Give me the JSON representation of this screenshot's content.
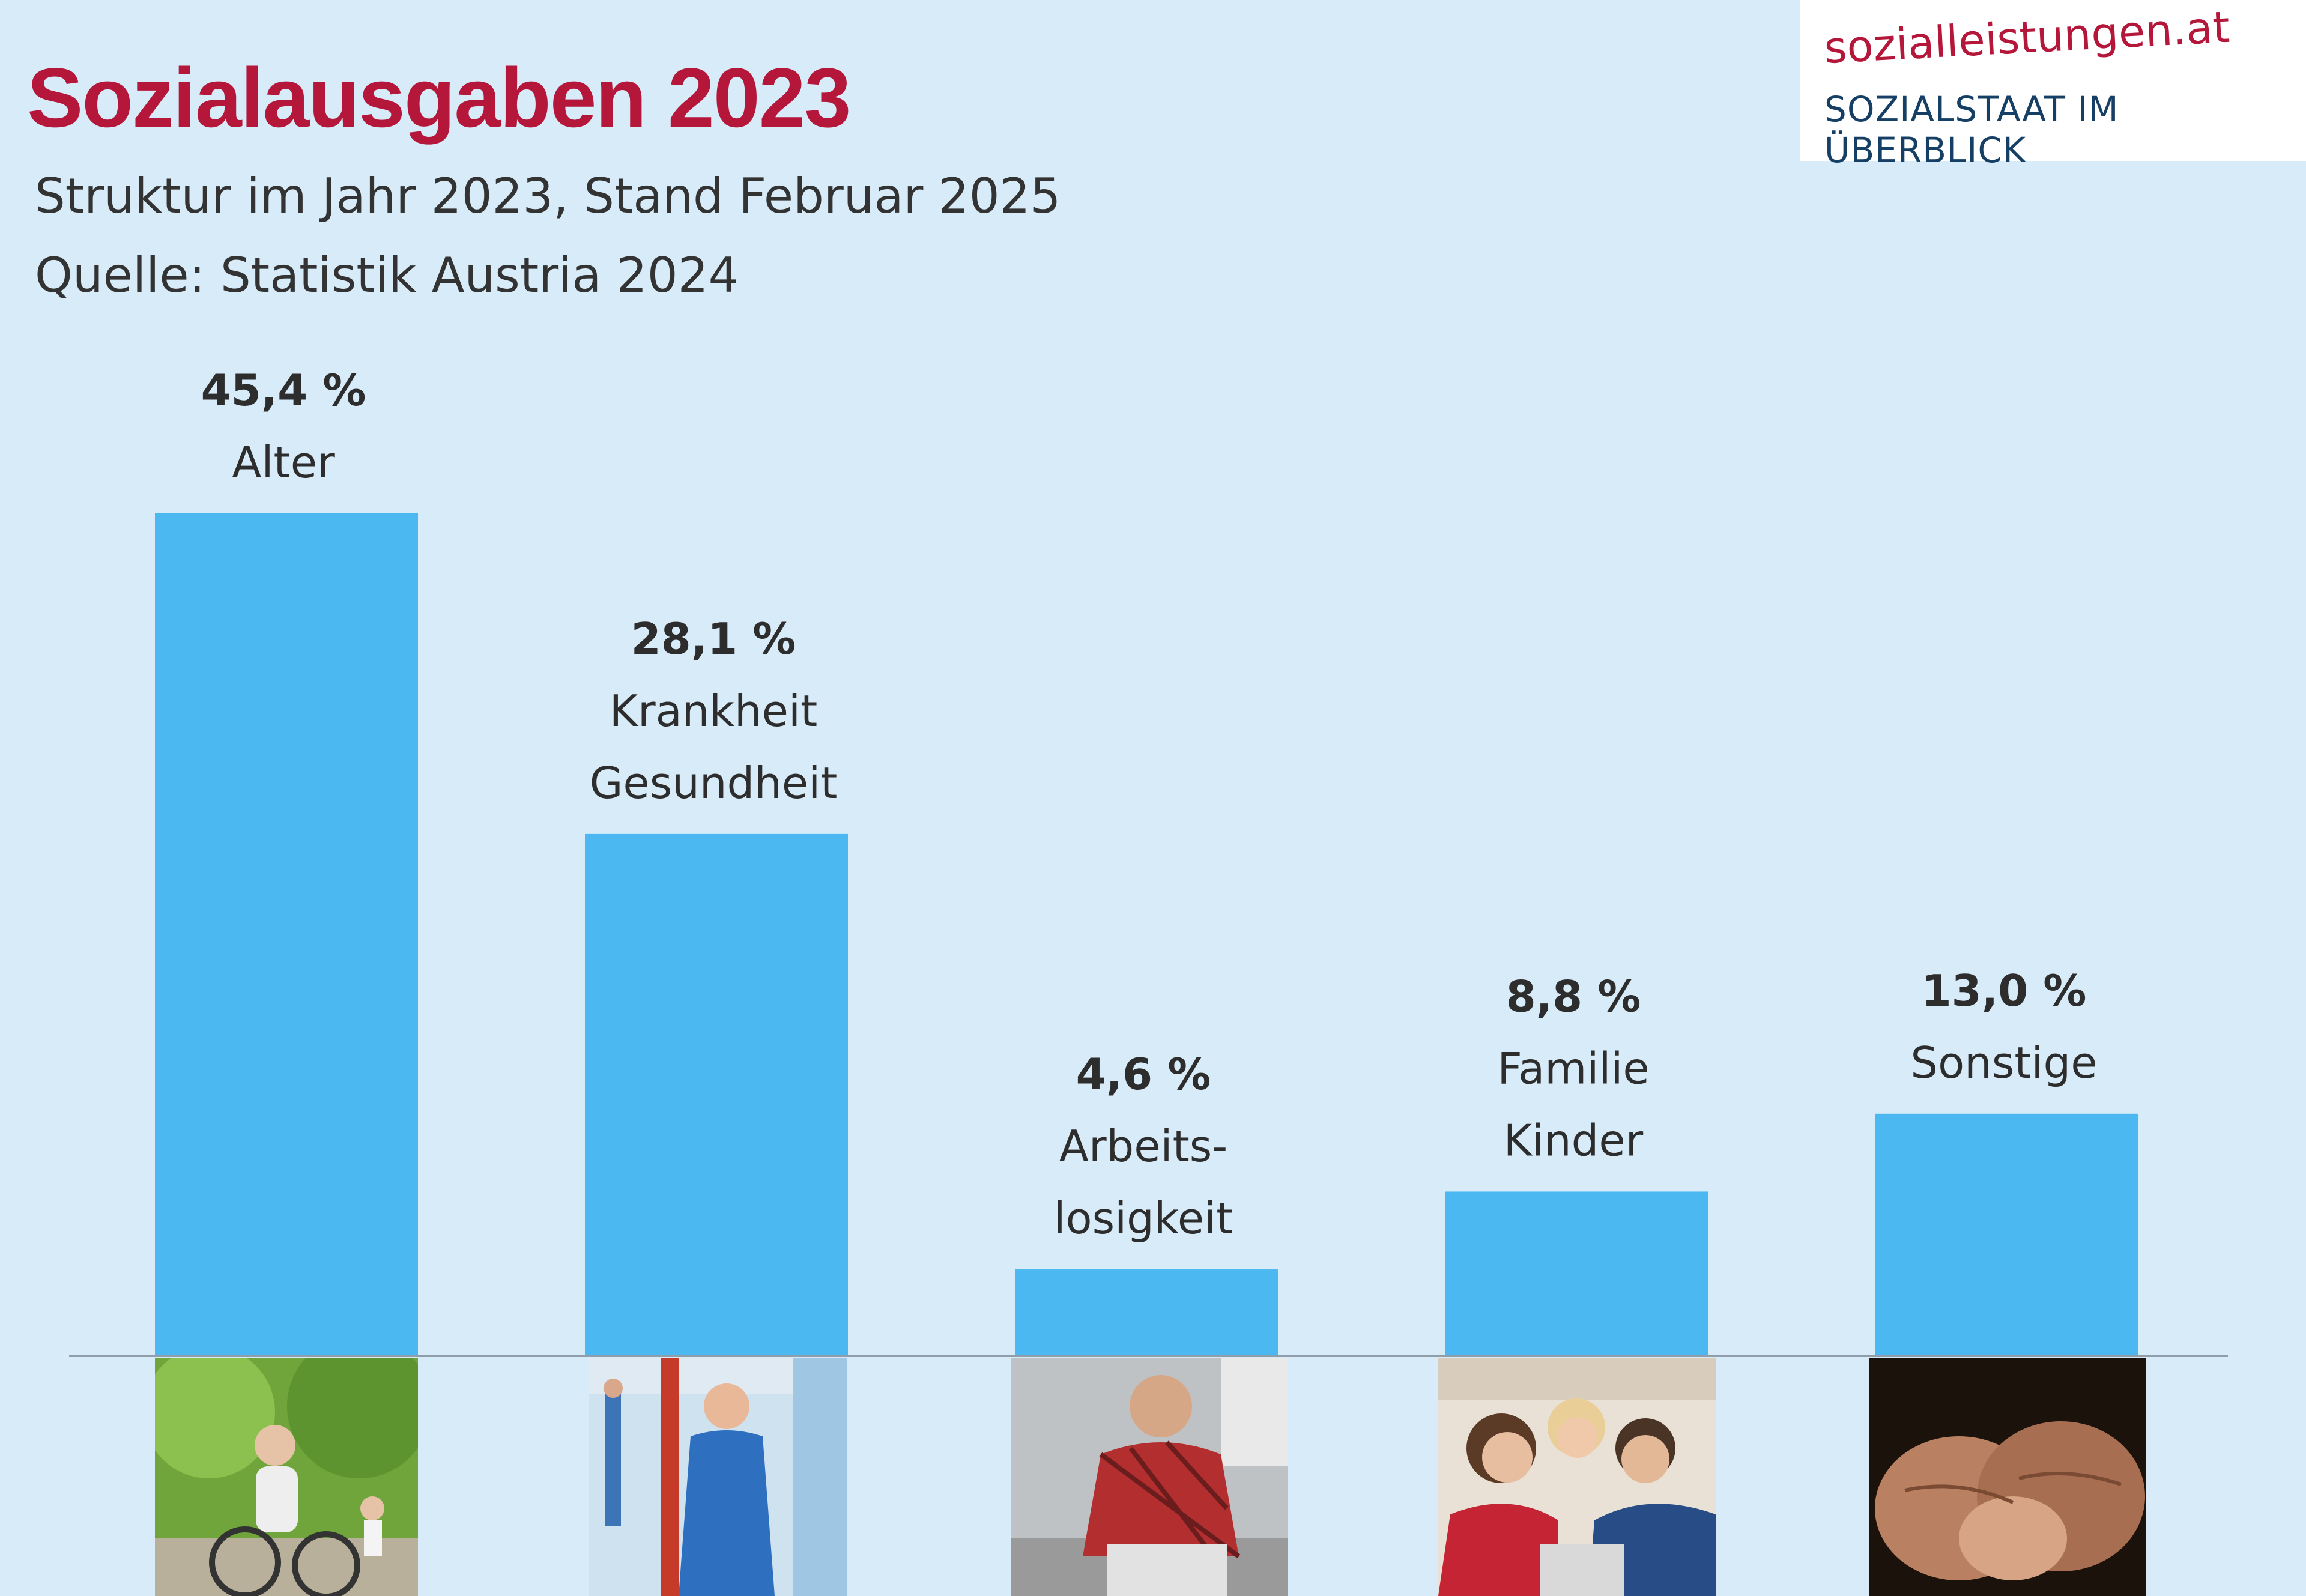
{
  "title": "Sozialausgaben 2023",
  "subtitle": "Struktur im Jahr 2023, Stand Februar 2025",
  "source": "Quelle: Statistik Austria 2024",
  "logo": {
    "top": "sozialleistungen.at",
    "bottom": "SOZIALSTAAT IM ÜBERBLICK"
  },
  "colors": {
    "title": "#b5173a",
    "bar": "#4bb8f2",
    "background": "#d8ebf8",
    "logo_blue": "#163f66"
  },
  "chart_data": {
    "type": "bar",
    "title": "Sozialausgaben 2023",
    "unit": "%",
    "ylim": [
      0,
      45.4
    ],
    "categories": [
      {
        "key": "alter",
        "value_label": "45,4 %",
        "lines": [
          "Alter"
        ],
        "image": "elderly-cycling-photo"
      },
      {
        "key": "krankheit",
        "value_label": "28,1 %",
        "lines": [
          "Krankheit",
          "Gesundheit"
        ],
        "image": "nurse-photo"
      },
      {
        "key": "arbeitslosigkeit",
        "value_label": "4,6 %",
        "lines": [
          "Arbeits-",
          "losigkeit"
        ],
        "image": "worried-man-photo"
      },
      {
        "key": "familie",
        "value_label": "8,8 %",
        "lines": [
          "Familie",
          "Kinder"
        ],
        "image": "family-photo"
      },
      {
        "key": "sonstige",
        "value_label": "13,0 %",
        "lines": [
          "Sonstige"
        ],
        "image": "holding-hands-photo"
      }
    ],
    "values": [
      45.4,
      28.1,
      4.6,
      8.8,
      13.0
    ]
  }
}
